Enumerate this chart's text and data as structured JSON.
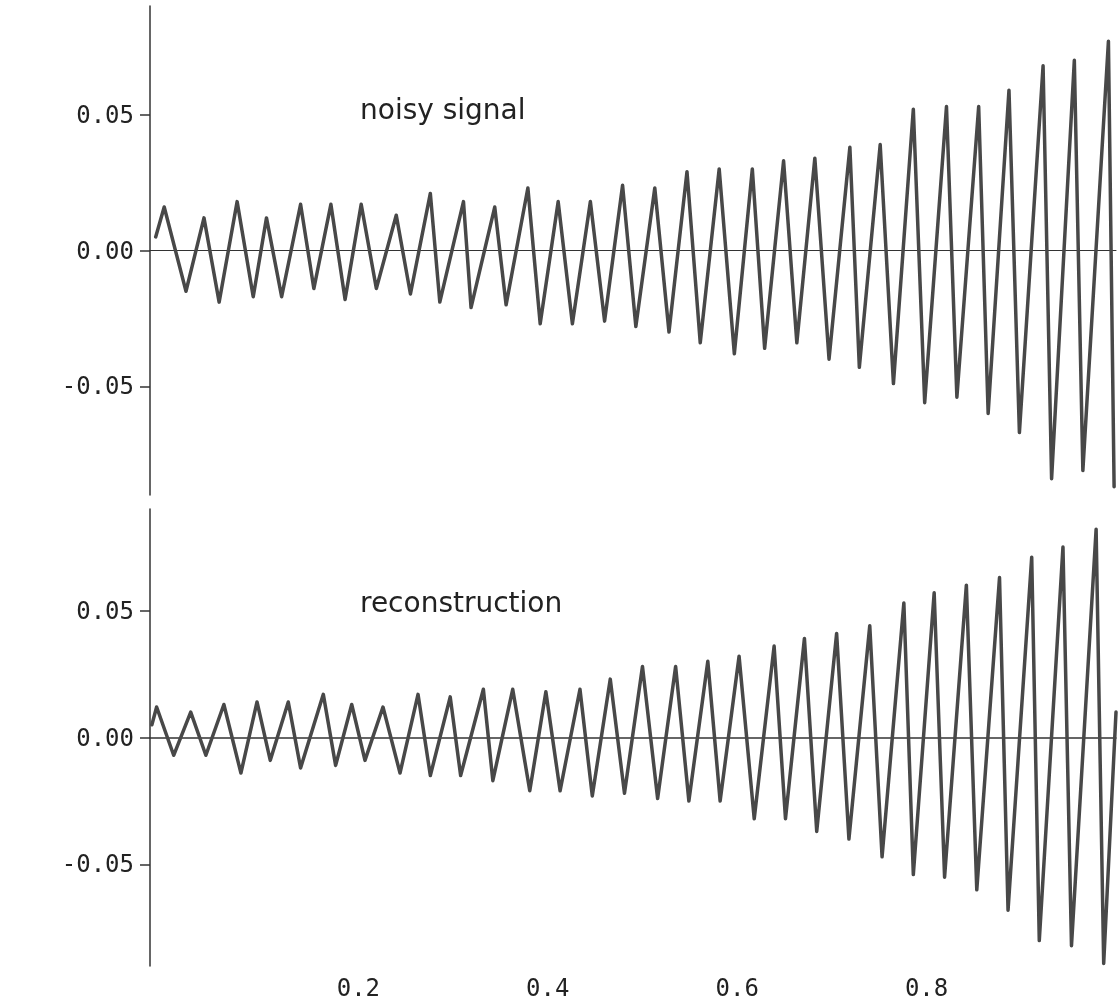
{
  "chart_data": [
    {
      "type": "line",
      "title": "noisy signal",
      "tick_labels": "y",
      "xlim": [
        -0.02,
        1.0
      ],
      "xticks": [
        0.2,
        0.4,
        0.6,
        0.8
      ],
      "ylim": [
        -0.09,
        0.09
      ],
      "yticks": [
        {
          "value": 0.05,
          "label": "0.05"
        },
        {
          "value": 0,
          "label": "0.00"
        },
        {
          "value": -0.05,
          "label": "-0.05"
        }
      ],
      "marker": "none",
      "line_style": "solid",
      "x": [
        -0.014,
        -0.005,
        0.018,
        0.037,
        0.053,
        0.072,
        0.089,
        0.103,
        0.119,
        0.139,
        0.153,
        0.171,
        0.186,
        0.203,
        0.219,
        0.24,
        0.255,
        0.276,
        0.286,
        0.311,
        0.319,
        0.344,
        0.356,
        0.379,
        0.392,
        0.411,
        0.426,
        0.445,
        0.46,
        0.479,
        0.493,
        0.513,
        0.528,
        0.547,
        0.561,
        0.581,
        0.597,
        0.616,
        0.629,
        0.649,
        0.663,
        0.682,
        0.697,
        0.719,
        0.729,
        0.751,
        0.765,
        0.786,
        0.798,
        0.821,
        0.832,
        0.855,
        0.865,
        0.887,
        0.898,
        0.923,
        0.932,
        0.956,
        0.965,
        0.992,
        0.998
      ],
      "series": [
        {
          "color": "#484848",
          "values": [
            0.005,
            0.016,
            -0.015,
            0.012,
            -0.019,
            0.018,
            -0.017,
            0.012,
            -0.017,
            0.017,
            -0.014,
            0.017,
            -0.018,
            0.017,
            -0.014,
            0.013,
            -0.016,
            0.021,
            -0.019,
            0.018,
            -0.021,
            0.016,
            -0.02,
            0.023,
            -0.027,
            0.018,
            -0.027,
            0.018,
            -0.026,
            0.024,
            -0.028,
            0.023,
            -0.03,
            0.029,
            -0.034,
            0.03,
            -0.038,
            0.03,
            -0.036,
            0.033,
            -0.034,
            0.034,
            -0.04,
            0.038,
            -0.043,
            0.039,
            -0.049,
            0.052,
            -0.056,
            0.053,
            -0.054,
            0.053,
            -0.06,
            0.059,
            -0.067,
            0.068,
            -0.084,
            0.07,
            -0.081,
            0.077,
            -0.087
          ]
        }
      ]
    },
    {
      "type": "line",
      "title": "reconstruction",
      "xlim": [
        -0.02,
        1.0
      ],
      "xticks": [
        0.2,
        0.4,
        0.6,
        0.8
      ],
      "ylim": [
        -0.09,
        0.09
      ],
      "yticks": [
        {
          "value": 0.05,
          "label": "0.05"
        },
        {
          "value": 0,
          "label": "0.00"
        },
        {
          "value": -0.05,
          "label": "-0.05"
        }
      ],
      "marker": "none",
      "line_style": "solid",
      "x": [
        -0.018,
        -0.013,
        0.005,
        0.023,
        0.039,
        0.058,
        0.076,
        0.093,
        0.107,
        0.126,
        0.139,
        0.163,
        0.176,
        0.193,
        0.207,
        0.226,
        0.244,
        0.263,
        0.276,
        0.297,
        0.308,
        0.332,
        0.342,
        0.363,
        0.381,
        0.398,
        0.413,
        0.434,
        0.447,
        0.466,
        0.481,
        0.5,
        0.516,
        0.535,
        0.549,
        0.569,
        0.582,
        0.602,
        0.618,
        0.639,
        0.651,
        0.671,
        0.684,
        0.705,
        0.718,
        0.74,
        0.753,
        0.776,
        0.786,
        0.808,
        0.819,
        0.842,
        0.853,
        0.877,
        0.886,
        0.911,
        0.919,
        0.944,
        0.953,
        0.979,
        0.987,
        1.0
      ],
      "series": [
        {
          "color": "#484848",
          "values": [
            0.005,
            0.012,
            -0.007,
            0.01,
            -0.007,
            0.013,
            -0.014,
            0.014,
            -0.009,
            0.014,
            -0.012,
            0.017,
            -0.011,
            0.013,
            -0.009,
            0.012,
            -0.014,
            0.017,
            -0.015,
            0.016,
            -0.015,
            0.019,
            -0.017,
            0.019,
            -0.021,
            0.018,
            -0.021,
            0.019,
            -0.023,
            0.023,
            -0.022,
            0.028,
            -0.024,
            0.028,
            -0.025,
            0.03,
            -0.025,
            0.032,
            -0.032,
            0.036,
            -0.032,
            0.039,
            -0.037,
            0.041,
            -0.04,
            0.044,
            -0.047,
            0.053,
            -0.054,
            0.057,
            -0.055,
            0.06,
            -0.06,
            0.063,
            -0.068,
            0.071,
            -0.08,
            0.075,
            -0.082,
            0.082,
            -0.089,
            0.01
          ]
        }
      ]
    }
  ]
}
